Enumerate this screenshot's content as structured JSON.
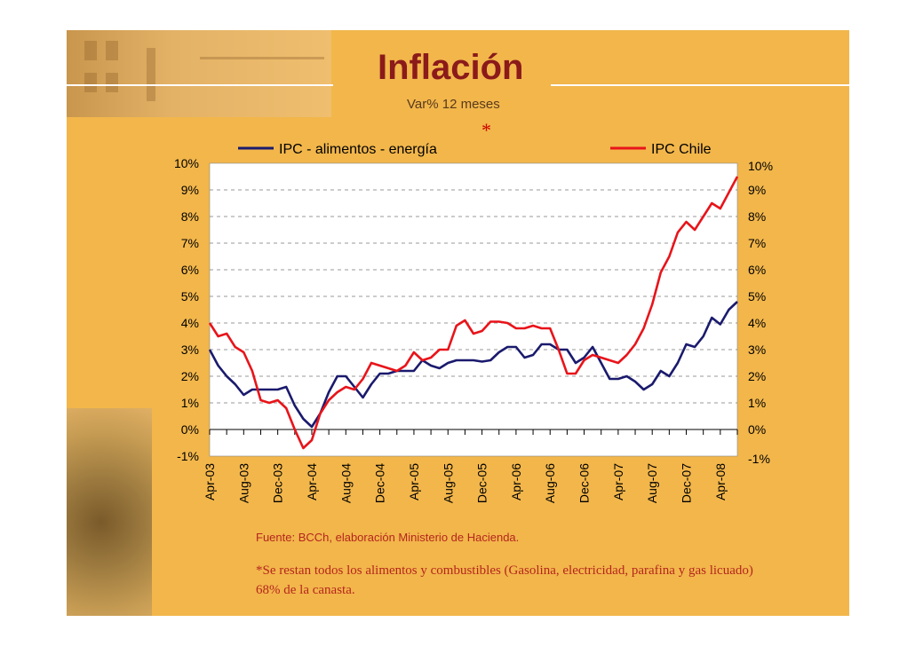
{
  "slide": {
    "title": "Inflación",
    "subtitle": "Var% 12 meses",
    "asterisk": "*",
    "source": "Fuente: BCCh, elaboración Ministerio de Hacienda.",
    "note": "*Se restan todos los alimentos y combustibles (Gasolina, electricidad, parafina y gas licuado) 68% de la canasta.",
    "background_color": "#f2b64b"
  },
  "chart_data": {
    "type": "line",
    "title": "",
    "xlabel": "",
    "ylabel": "",
    "ylim": [
      -1,
      10
    ],
    "y_ticks": [
      "10%",
      "9%",
      "8%",
      "7%",
      "6%",
      "5%",
      "4%",
      "3%",
      "2%",
      "1%",
      "0%",
      "-1%"
    ],
    "y_tick_values": [
      10,
      9,
      8,
      7,
      6,
      5,
      4,
      3,
      2,
      1,
      0,
      -1
    ],
    "x_tick_labels": [
      "Apr-03",
      "Aug-03",
      "Dec-03",
      "Apr-04",
      "Aug-04",
      "Dec-04",
      "Apr-05",
      "Aug-05",
      "Dec-05",
      "Apr-06",
      "Aug-06",
      "Dec-06",
      "Apr-07",
      "Aug-07",
      "Dec-07",
      "Apr-08"
    ],
    "x_tick_label_step": 4,
    "grid": "horizontal dashed",
    "legend": "top",
    "categories": [
      "Apr-03",
      "May-03",
      "Jun-03",
      "Jul-03",
      "Aug-03",
      "Sep-03",
      "Oct-03",
      "Nov-03",
      "Dec-03",
      "Jan-04",
      "Feb-04",
      "Mar-04",
      "Apr-04",
      "May-04",
      "Jun-04",
      "Jul-04",
      "Aug-04",
      "Sep-04",
      "Oct-04",
      "Nov-04",
      "Dec-04",
      "Jan-05",
      "Feb-05",
      "Mar-05",
      "Apr-05",
      "May-05",
      "Jun-05",
      "Jul-05",
      "Aug-05",
      "Sep-05",
      "Oct-05",
      "Nov-05",
      "Dec-05",
      "Jan-06",
      "Feb-06",
      "Mar-06",
      "Apr-06",
      "May-06",
      "Jun-06",
      "Jul-06",
      "Aug-06",
      "Sep-06",
      "Oct-06",
      "Nov-06",
      "Dec-06",
      "Jan-07",
      "Feb-07",
      "Mar-07",
      "Apr-07",
      "May-07",
      "Jun-07",
      "Jul-07",
      "Aug-07",
      "Sep-07",
      "Oct-07",
      "Nov-07",
      "Dec-07",
      "Jan-08",
      "Feb-08",
      "Mar-08",
      "Apr-08",
      "May-08",
      "Jun-08"
    ],
    "series": [
      {
        "name": "IPC - alimentos - energía",
        "color": "#1a1a6e",
        "values": [
          3.0,
          2.4,
          2.0,
          1.7,
          1.3,
          1.5,
          1.5,
          1.5,
          1.5,
          1.6,
          0.9,
          0.4,
          0.1,
          0.6,
          1.4,
          2.0,
          2.0,
          1.6,
          1.2,
          1.7,
          2.1,
          2.1,
          2.2,
          2.2,
          2.2,
          2.6,
          2.4,
          2.3,
          2.5,
          2.6,
          2.6,
          2.6,
          2.55,
          2.6,
          2.9,
          3.1,
          3.1,
          2.7,
          2.8,
          3.2,
          3.2,
          3.0,
          3.0,
          2.5,
          2.7,
          3.1,
          2.5,
          1.9,
          1.9,
          2.0,
          1.8,
          1.5,
          1.7,
          2.2,
          2.0,
          2.5,
          3.2,
          3.1,
          3.5,
          4.2,
          3.95,
          4.5,
          4.8
        ]
      },
      {
        "name": "IPC Chile",
        "color": "#e8141a",
        "values": [
          4.0,
          3.5,
          3.6,
          3.1,
          2.9,
          2.2,
          1.1,
          1.0,
          1.1,
          0.8,
          0.0,
          -0.7,
          -0.4,
          0.6,
          1.1,
          1.4,
          1.6,
          1.5,
          1.9,
          2.5,
          2.4,
          2.3,
          2.2,
          2.4,
          2.9,
          2.6,
          2.7,
          3.0,
          3.0,
          3.9,
          4.1,
          3.6,
          3.7,
          4.05,
          4.05,
          4.0,
          3.8,
          3.8,
          3.9,
          3.8,
          3.8,
          3.0,
          2.1,
          2.1,
          2.6,
          2.8,
          2.7,
          2.6,
          2.5,
          2.8,
          3.2,
          3.8,
          4.7,
          5.9,
          6.5,
          7.4,
          7.8,
          7.5,
          8.0,
          8.5,
          8.3,
          8.9,
          9.5
        ]
      }
    ]
  }
}
